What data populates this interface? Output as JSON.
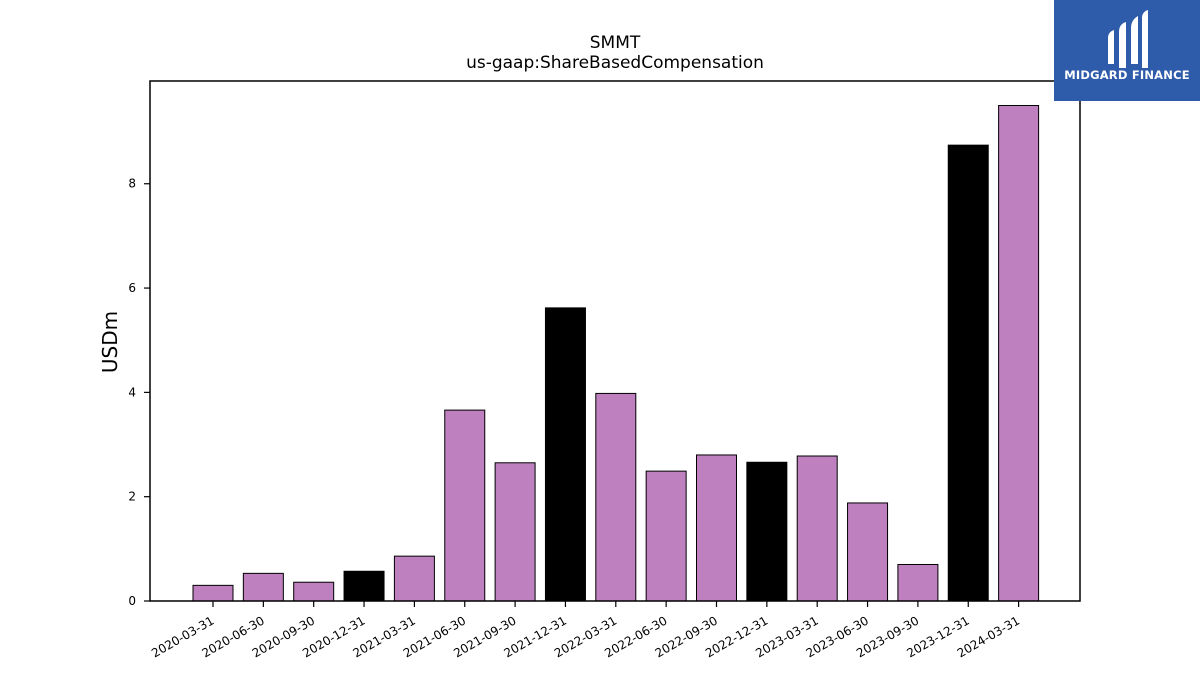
{
  "brand": {
    "name": "MIDGARD FINANCE"
  },
  "chart_data": {
    "type": "bar",
    "title": "SMMT",
    "subtitle": "us-gaap:ShareBasedCompensation",
    "xlabel": "",
    "ylabel": "USDm",
    "ylim": [
      0,
      10
    ],
    "yticks": [
      0,
      2,
      4,
      6,
      8
    ],
    "grid": false,
    "categories": [
      "2020-03-31",
      "2020-06-30",
      "2020-09-30",
      "2020-12-31",
      "2021-03-31",
      "2021-06-30",
      "2021-09-30",
      "2021-12-31",
      "2022-03-31",
      "2022-06-30",
      "2022-09-30",
      "2022-12-31",
      "2023-03-31",
      "2023-06-30",
      "2023-09-30",
      "2023-12-31",
      "2024-03-31"
    ],
    "values": [
      0.3,
      0.53,
      0.36,
      0.57,
      0.86,
      3.66,
      2.65,
      5.62,
      3.98,
      2.49,
      2.8,
      2.66,
      2.78,
      1.88,
      0.7,
      8.74,
      9.5
    ],
    "colors": {
      "quarter": "#bf80bf",
      "year_end": "#000000"
    },
    "bar_colors": [
      "quarter",
      "quarter",
      "quarter",
      "year_end",
      "quarter",
      "quarter",
      "quarter",
      "year_end",
      "quarter",
      "quarter",
      "quarter",
      "year_end",
      "quarter",
      "quarter",
      "quarter",
      "year_end",
      "quarter"
    ]
  }
}
